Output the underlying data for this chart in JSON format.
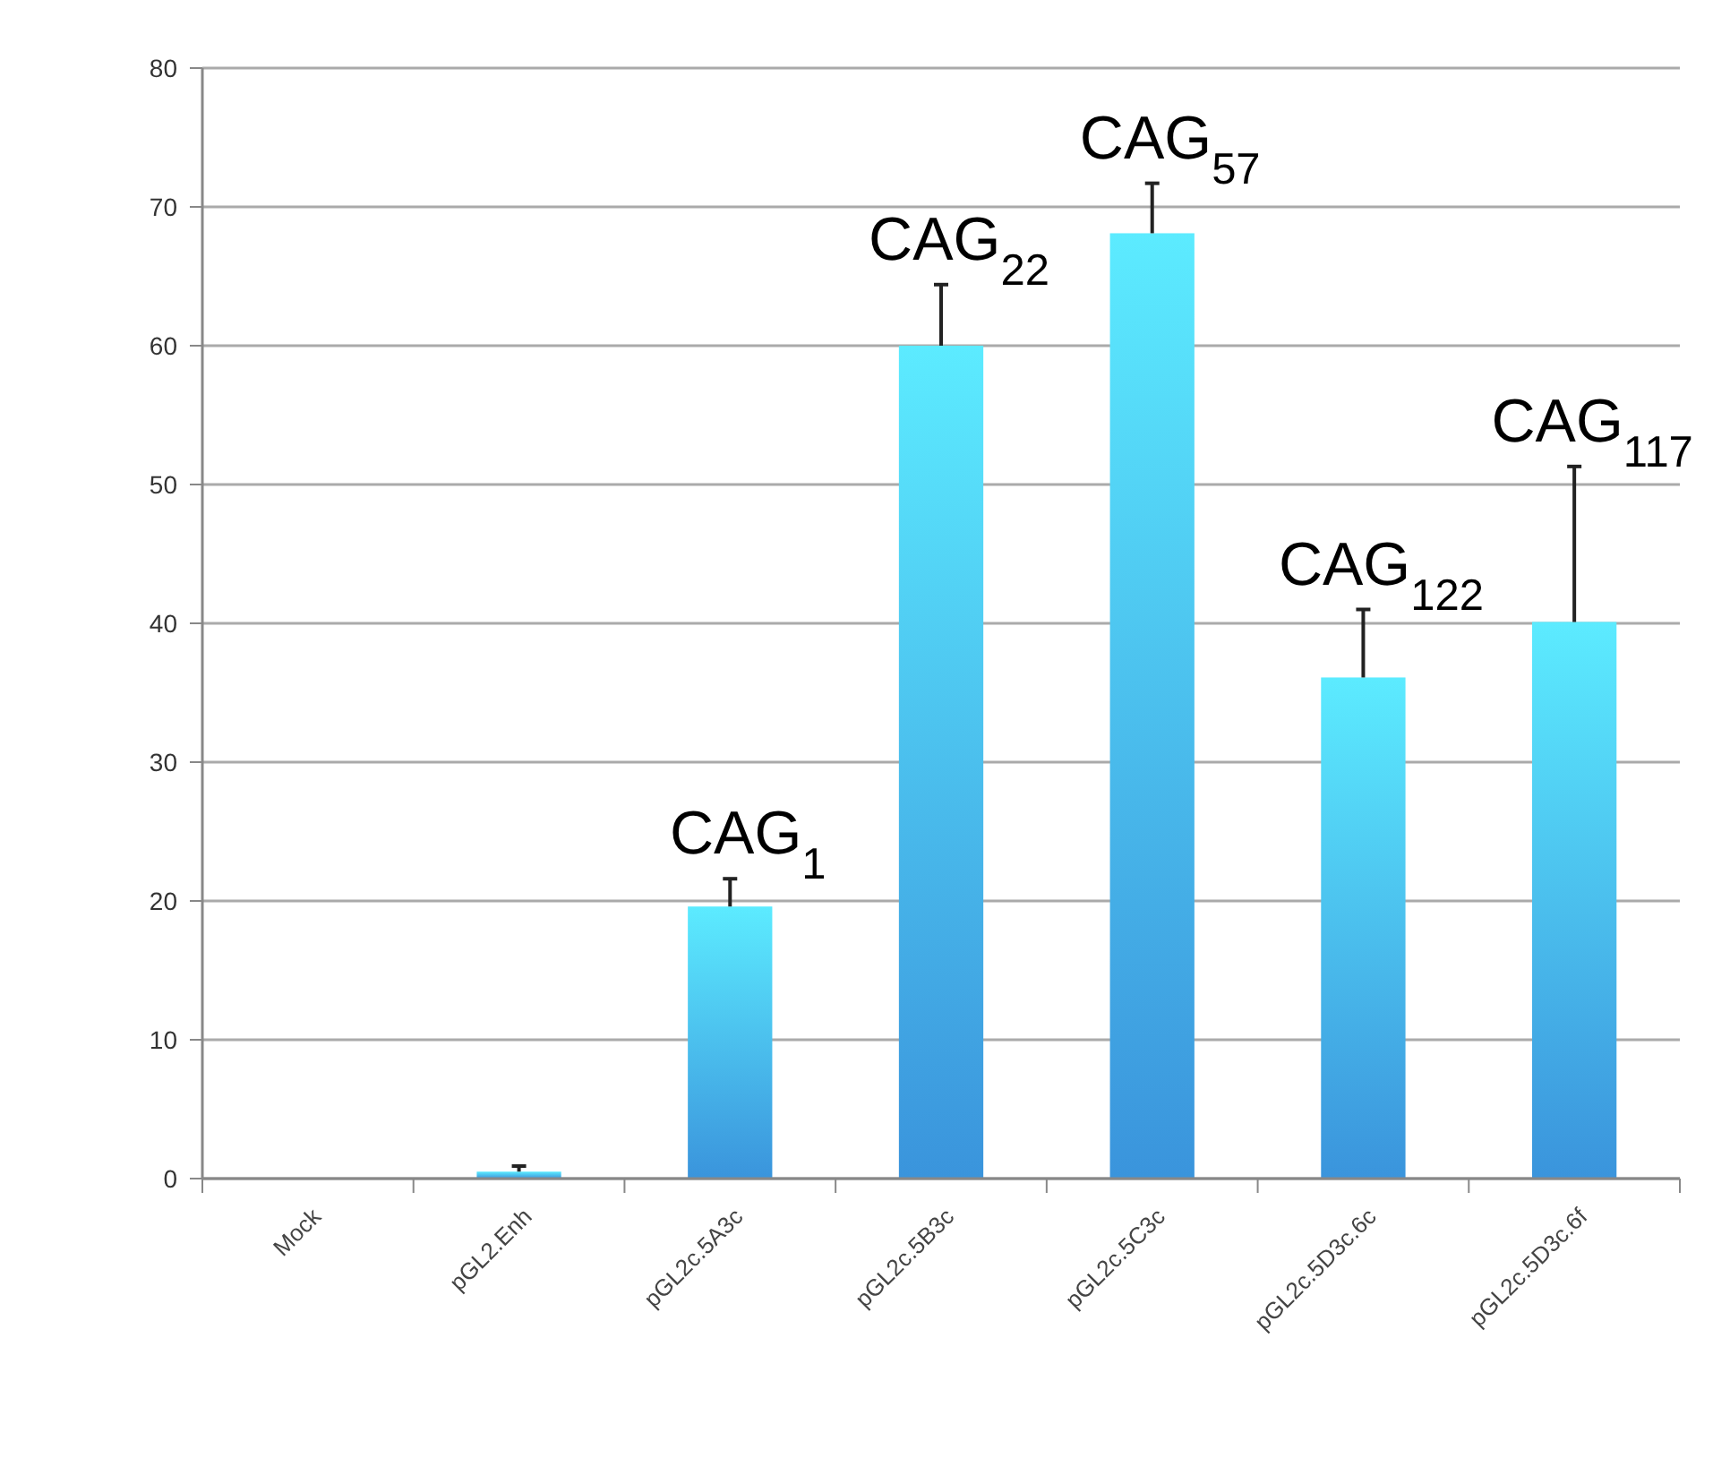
{
  "chart_data": {
    "type": "bar",
    "categories": [
      "Mock",
      "pGL2.Enh",
      "pGL2c.5A3c",
      "pGL2c.5B3c",
      "pGL2c.5C3c",
      "pGL2c.5D3c.6c",
      "pGL2c.5D3c.6f"
    ],
    "values": [
      0,
      0.5,
      19.6,
      60,
      68.1,
      36.1,
      40.1
    ],
    "errors": [
      null,
      [
        0.5,
        0.9
      ],
      [
        19.6,
        21.6
      ],
      [
        60,
        64.4
      ],
      [
        68.1,
        71.7
      ],
      [
        36.1,
        41
      ],
      [
        40.1,
        51.3
      ]
    ],
    "color": "#3a94dc",
    "ylim": [
      0,
      80
    ],
    "yticks": [
      0,
      10,
      20,
      30,
      40,
      50,
      60,
      70,
      80
    ],
    "grid": "y",
    "annotations": [
      {
        "text": "CAG$_{1}$",
        "x": "pGL2c.5A3c",
        "y": 21.6
      },
      {
        "text": "CAG$_{22}$",
        "x": "pGL2c.5B3c",
        "y": 64.4
      },
      {
        "text": "CAG$_{57}$",
        "x": "pGL2c.5C3c",
        "y": 71.7
      },
      {
        "text": "CAG$_{122}$",
        "x": "pGL2c.5D3c.6c",
        "y": 41
      },
      {
        "text": "CAG$_{117}$",
        "x": "pGL2c.5D3c.6f",
        "y": 51.3
      }
    ]
  }
}
